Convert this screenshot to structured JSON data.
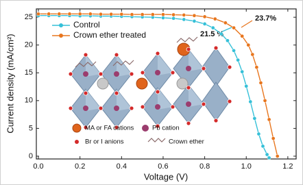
{
  "chart_data": {
    "type": "line",
    "x_label": "Voltage (V)",
    "y_label": "Current density (mA/cm²)",
    "xlim": [
      -0.01,
      1.24
    ],
    "ylim": [
      -0.5,
      26.5
    ],
    "xticks": [
      {
        "value": 0,
        "label": "0.0"
      },
      0.2,
      0.4,
      0.6,
      0.8,
      {
        "value": 1,
        "label": "1.0"
      },
      1.2
    ],
    "yticks": [
      0,
      5,
      10,
      15,
      20,
      25
    ],
    "legend": "upper left",
    "series": [
      {
        "name": "Control",
        "color": "#35c0d8",
        "x": [
          0,
          0.05,
          0.1,
          0.15,
          0.2,
          0.25,
          0.3,
          0.35,
          0.4,
          0.45,
          0.5,
          0.55,
          0.6,
          0.65,
          0.7,
          0.75,
          0.8,
          0.84,
          0.88,
          0.91,
          0.94,
          0.96,
          0.98,
          1.0,
          1.02,
          1.04,
          1.06,
          1.08,
          1.1,
          1.11
        ],
        "values": [
          25.3,
          25.3,
          25.3,
          25.3,
          25.25,
          25.25,
          25.2,
          25.2,
          25.15,
          25.1,
          25.05,
          25.0,
          24.9,
          24.8,
          24.6,
          24.3,
          23.8,
          23.1,
          22.0,
          20.8,
          19.0,
          17.3,
          15.2,
          12.6,
          9.8,
          6.8,
          4.0,
          1.8,
          0.3,
          -0.3
        ]
      },
      {
        "name": "Crown ether treated",
        "color": "#e8761e",
        "x": [
          0,
          0.05,
          0.1,
          0.15,
          0.2,
          0.25,
          0.3,
          0.35,
          0.4,
          0.45,
          0.5,
          0.55,
          0.6,
          0.65,
          0.7,
          0.75,
          0.8,
          0.85,
          0.9,
          0.94,
          0.98,
          1.01,
          1.03,
          1.05,
          1.07,
          1.09,
          1.11,
          1.13,
          1.15
        ],
        "values": [
          25.6,
          25.6,
          25.6,
          25.6,
          25.6,
          25.6,
          25.55,
          25.55,
          25.55,
          25.5,
          25.5,
          25.5,
          25.5,
          25.45,
          25.4,
          25.3,
          25.1,
          24.7,
          24.0,
          23.1,
          21.6,
          20.0,
          18.3,
          16.0,
          13.2,
          10.0,
          6.6,
          3.2,
          0.0
        ]
      }
    ],
    "annotations": [
      "21.5 %",
      "23.7%"
    ],
    "inset_legend": [
      "MA or FA cations",
      "Pb cation",
      "Br or I anions",
      "Crown ether"
    ]
  }
}
